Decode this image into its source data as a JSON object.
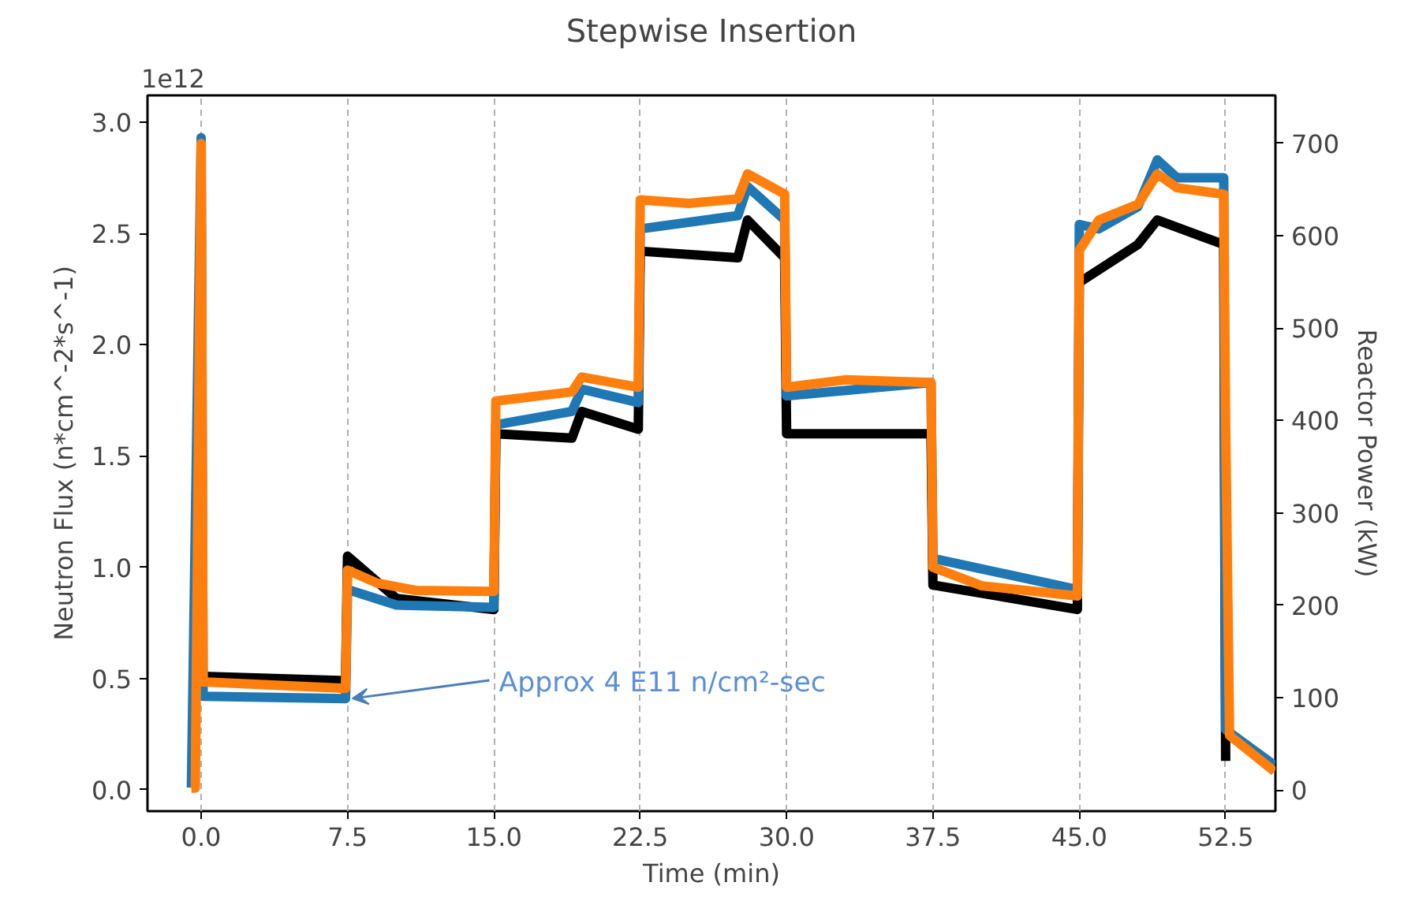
{
  "chart_data": {
    "type": "line",
    "title": "Stepwise Insertion",
    "xlabel": "Time (min)",
    "ylabel": "Neutron Flux (n*cm^-2*s^-1)",
    "y2label": "Reactor Power (kW)",
    "xlim": [
      -2.75,
      55.05
    ],
    "ylim": [
      -0.096,
      3.12
    ],
    "y2lim": [
      -23,
      752
    ],
    "xticks": [
      {
        "value": 0,
        "label": "0.0"
      },
      7.5,
      {
        "value": 15,
        "label": "15.0"
      },
      22.5,
      {
        "value": 30,
        "label": "30.0"
      },
      37.5,
      {
        "value": 45,
        "label": "45.0"
      },
      52.5
    ],
    "yticks": [
      {
        "value": 0,
        "label": "0.0"
      },
      0.5,
      {
        "value": 1,
        "label": "1.0"
      },
      1.5,
      {
        "value": 2,
        "label": "2.0"
      },
      2.5,
      {
        "value": 3,
        "label": "3.0"
      }
    ],
    "y2ticks": [
      0,
      100,
      200,
      300,
      400,
      500,
      600,
      700
    ],
    "grid": "x",
    "marker": "none",
    "annotations": [
      "1e12",
      {
        "text": "Approx 4 E11 n/cm²-sec",
        "x": 7.5,
        "y": 0.41
      }
    ],
    "series": [
      {
        "color": "#000000",
        "x": [
          0.1,
          7.4,
          7.5,
          10,
          15,
          15.1,
          19,
          19.5,
          22.4,
          22.5,
          27.5,
          28,
          29.9,
          30,
          37.4,
          37.5,
          44.9,
          45,
          48,
          49,
          52.4,
          52.5
        ],
        "values": [
          0.51,
          0.49,
          1.05,
          0.86,
          0.81,
          1.6,
          1.58,
          1.7,
          1.62,
          2.42,
          2.39,
          2.56,
          2.39,
          1.6,
          1.6,
          0.92,
          0.81,
          2.28,
          2.45,
          2.56,
          2.45,
          0.13
        ]
      },
      {
        "color": "#1f77b4",
        "x": [
          -0.5,
          0,
          0.1,
          7.4,
          7.5,
          10,
          15,
          15.1,
          19,
          19.5,
          22.4,
          22.5,
          27.5,
          28,
          29.9,
          30,
          37.4,
          37.5,
          44.9,
          45,
          46,
          48,
          49,
          50,
          52.4,
          52.5,
          55
        ],
        "values": [
          0.01,
          2.93,
          0.42,
          0.41,
          0.9,
          0.83,
          0.82,
          1.64,
          1.7,
          1.8,
          1.74,
          2.52,
          2.58,
          2.71,
          2.56,
          1.77,
          1.83,
          1.04,
          0.9,
          2.54,
          2.52,
          2.62,
          2.83,
          2.75,
          2.75,
          0.27,
          0.11
        ]
      },
      {
        "color": "#ff7f0e",
        "axis": "y2",
        "x": [
          -0.5,
          -0.3,
          0,
          0.1,
          7.4,
          7.5,
          9,
          11,
          15,
          15.1,
          19,
          19.5,
          22.4,
          22.5,
          25,
          27.5,
          28,
          29.9,
          30,
          33,
          37.4,
          37.5,
          40,
          44.9,
          45,
          46,
          48,
          49,
          50,
          52.4,
          52.5,
          52.7,
          55
        ],
        "values": [
          2,
          2,
          700,
          117,
          110,
          238,
          224,
          216,
          215,
          421,
          431,
          447,
          436,
          639,
          635,
          640,
          667,
          645,
          436,
          444,
          441,
          241,
          221,
          210,
          584,
          617,
          634,
          667,
          652,
          645,
          394,
          59,
          20
        ]
      }
    ]
  }
}
